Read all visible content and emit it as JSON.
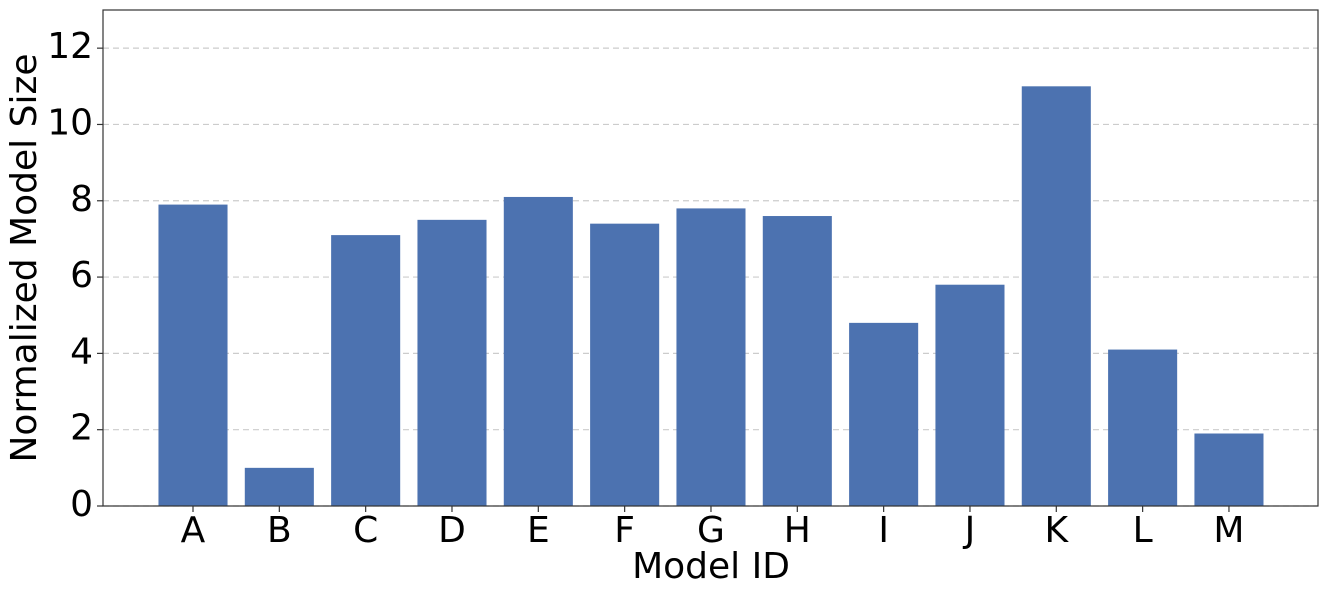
{
  "chart_data": {
    "type": "bar",
    "x_label": "Model ID",
    "y_label": "Normalized Model Size",
    "categories": [
      "A",
      "B",
      "C",
      "D",
      "E",
      "F",
      "G",
      "H",
      "I",
      "J",
      "K",
      "L",
      "M"
    ],
    "values": [
      7.9,
      1.0,
      7.1,
      7.5,
      8.1,
      7.4,
      7.8,
      7.6,
      4.8,
      5.8,
      11.0,
      4.1,
      1.9
    ],
    "color": "#4c72b0",
    "ylim": [
      0,
      13
    ],
    "yticks": [
      0,
      2,
      4,
      6,
      8,
      10,
      12
    ],
    "grid": true
  }
}
